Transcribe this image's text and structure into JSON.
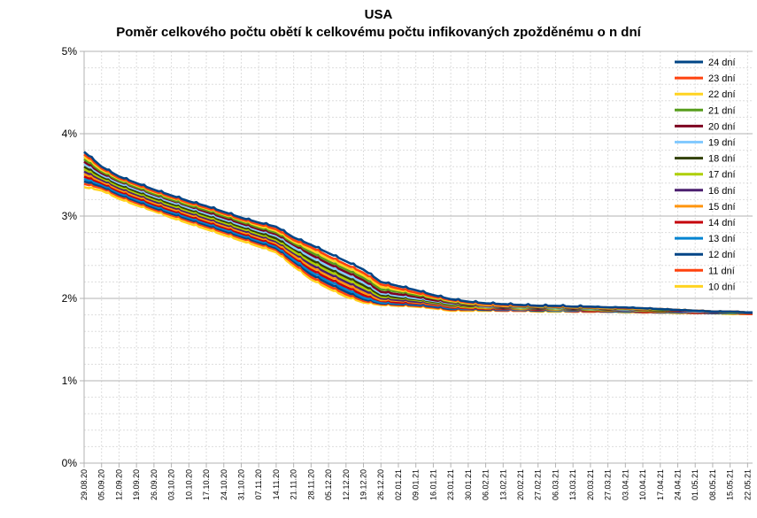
{
  "chart_data": {
    "type": "line",
    "title": "USA",
    "subtitle": "Poměr celkového počtu obětí k celkovému počtu infikovaných zpožděnému o n dní",
    "xlabel": "",
    "ylabel": "",
    "ylim": [
      0,
      5
    ],
    "y_ticks": [
      "0%",
      "1%",
      "2%",
      "3%",
      "4%",
      "5%"
    ],
    "grid": true,
    "legend_position": "top-right",
    "x_tick_labels": [
      "29.08.20",
      "05.09.20",
      "12.09.20",
      "19.09.20",
      "26.09.20",
      "03.10.20",
      "10.10.20",
      "17.10.20",
      "24.10.20",
      "31.10.20",
      "07.11.20",
      "14.11.20",
      "21.11.20",
      "28.11.20",
      "05.12.20",
      "12.12.20",
      "19.12.20",
      "26.12.20",
      "02.01.21",
      "09.01.21",
      "16.01.21",
      "23.01.21",
      "30.01.21",
      "06.02.21",
      "13.02.21",
      "20.02.21",
      "27.02.21",
      "06.03.21",
      "13.03.21",
      "20.03.21",
      "27.03.21",
      "03.04.21",
      "10.04.21",
      "17.04.21",
      "24.04.21",
      "01.05.21",
      "08.05.21",
      "15.05.21",
      "22.05.21"
    ],
    "x_key_points": [
      0,
      7,
      14,
      21,
      28,
      35,
      42,
      49,
      56,
      63,
      70,
      77,
      84,
      91,
      98,
      105,
      112,
      119,
      126,
      133,
      140,
      147,
      154,
      161,
      168,
      175,
      182,
      189,
      196,
      203,
      210,
      217,
      224,
      231,
      238,
      245,
      252,
      259,
      266
    ],
    "series": [
      {
        "name": "24 dní",
        "color": "#004586",
        "values": [
          3.78,
          3.6,
          3.48,
          3.4,
          3.32,
          3.25,
          3.18,
          3.12,
          3.05,
          2.98,
          2.92,
          2.87,
          2.74,
          2.65,
          2.55,
          2.45,
          2.35,
          2.2,
          2.15,
          2.1,
          2.04,
          1.99,
          1.96,
          1.94,
          1.93,
          1.92,
          1.91,
          1.91,
          1.9,
          1.9,
          1.89,
          1.89,
          1.88,
          1.87,
          1.86,
          1.85,
          1.84,
          1.84,
          1.83
        ]
      },
      {
        "name": "23 dní",
        "color": "#ff420e",
        "values": [
          3.75,
          3.58,
          3.46,
          3.38,
          3.3,
          3.23,
          3.16,
          3.1,
          3.03,
          2.96,
          2.9,
          2.84,
          2.71,
          2.62,
          2.51,
          2.41,
          2.31,
          2.17,
          2.12,
          2.07,
          2.02,
          1.98,
          1.95,
          1.93,
          1.92,
          1.91,
          1.91,
          1.9,
          1.9,
          1.89,
          1.89,
          1.88,
          1.88,
          1.87,
          1.86,
          1.85,
          1.84,
          1.84,
          1.83
        ]
      },
      {
        "name": "22 dní",
        "color": "#ffd320",
        "values": [
          3.72,
          3.56,
          3.45,
          3.37,
          3.29,
          3.22,
          3.15,
          3.09,
          3.02,
          2.95,
          2.88,
          2.82,
          2.69,
          2.59,
          2.48,
          2.38,
          2.28,
          2.14,
          2.1,
          2.06,
          2.01,
          1.97,
          1.94,
          1.92,
          1.91,
          1.91,
          1.9,
          1.9,
          1.89,
          1.89,
          1.88,
          1.88,
          1.87,
          1.87,
          1.86,
          1.85,
          1.84,
          1.84,
          1.83
        ]
      },
      {
        "name": "21 dní",
        "color": "#579d1c",
        "values": [
          3.69,
          3.54,
          3.43,
          3.35,
          3.27,
          3.2,
          3.13,
          3.07,
          3.0,
          2.93,
          2.86,
          2.8,
          2.67,
          2.56,
          2.45,
          2.35,
          2.25,
          2.11,
          2.08,
          2.04,
          2.0,
          1.96,
          1.93,
          1.92,
          1.91,
          1.9,
          1.9,
          1.89,
          1.89,
          1.88,
          1.88,
          1.87,
          1.87,
          1.86,
          1.86,
          1.85,
          1.84,
          1.83,
          1.83
        ]
      },
      {
        "name": "20 dní",
        "color": "#7e0021",
        "values": [
          3.66,
          3.52,
          3.42,
          3.34,
          3.26,
          3.19,
          3.12,
          3.05,
          2.98,
          2.91,
          2.84,
          2.78,
          2.65,
          2.53,
          2.42,
          2.32,
          2.22,
          2.08,
          2.05,
          2.02,
          1.98,
          1.95,
          1.92,
          1.91,
          1.9,
          1.9,
          1.89,
          1.89,
          1.88,
          1.88,
          1.87,
          1.87,
          1.86,
          1.86,
          1.85,
          1.85,
          1.84,
          1.83,
          1.83
        ]
      },
      {
        "name": "19 dní",
        "color": "#83caff",
        "values": [
          3.63,
          3.5,
          3.4,
          3.32,
          3.24,
          3.17,
          3.1,
          3.03,
          2.96,
          2.89,
          2.82,
          2.76,
          2.62,
          2.5,
          2.39,
          2.29,
          2.19,
          2.06,
          2.03,
          2.0,
          1.97,
          1.94,
          1.92,
          1.9,
          1.9,
          1.89,
          1.89,
          1.88,
          1.88,
          1.87,
          1.87,
          1.86,
          1.86,
          1.86,
          1.85,
          1.84,
          1.84,
          1.83,
          1.83
        ]
      },
      {
        "name": "18 dní",
        "color": "#314004",
        "values": [
          3.6,
          3.48,
          3.38,
          3.3,
          3.22,
          3.15,
          3.08,
          3.01,
          2.94,
          2.87,
          2.8,
          2.73,
          2.6,
          2.47,
          2.36,
          2.26,
          2.16,
          2.04,
          2.01,
          1.99,
          1.96,
          1.93,
          1.91,
          1.9,
          1.89,
          1.89,
          1.88,
          1.88,
          1.87,
          1.87,
          1.86,
          1.86,
          1.86,
          1.85,
          1.85,
          1.84,
          1.84,
          1.83,
          1.83
        ]
      },
      {
        "name": "17 dní",
        "color": "#aecf00",
        "values": [
          3.57,
          3.46,
          3.36,
          3.28,
          3.2,
          3.13,
          3.06,
          2.99,
          2.92,
          2.85,
          2.78,
          2.71,
          2.57,
          2.44,
          2.33,
          2.23,
          2.13,
          2.02,
          2.0,
          1.98,
          1.95,
          1.92,
          1.9,
          1.89,
          1.89,
          1.88,
          1.88,
          1.87,
          1.87,
          1.86,
          1.86,
          1.86,
          1.85,
          1.85,
          1.85,
          1.84,
          1.84,
          1.83,
          1.83
        ]
      },
      {
        "name": "16 dní",
        "color": "#4b1f6f",
        "values": [
          3.54,
          3.44,
          3.34,
          3.26,
          3.18,
          3.11,
          3.04,
          2.97,
          2.9,
          2.83,
          2.76,
          2.69,
          2.55,
          2.41,
          2.3,
          2.2,
          2.1,
          2.0,
          1.98,
          1.96,
          1.94,
          1.91,
          1.9,
          1.89,
          1.88,
          1.88,
          1.87,
          1.87,
          1.86,
          1.86,
          1.86,
          1.85,
          1.85,
          1.85,
          1.84,
          1.84,
          1.83,
          1.83,
          1.82
        ]
      },
      {
        "name": "15 dní",
        "color": "#ff950e",
        "values": [
          3.51,
          3.42,
          3.32,
          3.24,
          3.16,
          3.09,
          3.02,
          2.95,
          2.88,
          2.81,
          2.74,
          2.67,
          2.52,
          2.38,
          2.27,
          2.17,
          2.07,
          1.98,
          1.97,
          1.95,
          1.93,
          1.9,
          1.89,
          1.88,
          1.88,
          1.87,
          1.87,
          1.86,
          1.86,
          1.86,
          1.85,
          1.85,
          1.85,
          1.84,
          1.84,
          1.84,
          1.83,
          1.83,
          1.82
        ]
      },
      {
        "name": "14 dní",
        "color": "#c5000b",
        "values": [
          3.48,
          3.4,
          3.3,
          3.22,
          3.14,
          3.07,
          3.0,
          2.93,
          2.86,
          2.79,
          2.72,
          2.65,
          2.5,
          2.35,
          2.24,
          2.14,
          2.04,
          1.97,
          1.95,
          1.94,
          1.92,
          1.89,
          1.88,
          1.87,
          1.87,
          1.87,
          1.86,
          1.86,
          1.86,
          1.85,
          1.85,
          1.85,
          1.84,
          1.84,
          1.84,
          1.83,
          1.83,
          1.83,
          1.82
        ]
      },
      {
        "name": "13 dní",
        "color": "#0084d1",
        "values": [
          3.45,
          3.38,
          3.28,
          3.2,
          3.12,
          3.05,
          2.98,
          2.91,
          2.84,
          2.77,
          2.7,
          2.63,
          2.47,
          2.32,
          2.21,
          2.11,
          2.01,
          1.95,
          1.94,
          1.93,
          1.91,
          1.88,
          1.87,
          1.87,
          1.86,
          1.86,
          1.86,
          1.85,
          1.85,
          1.85,
          1.85,
          1.84,
          1.84,
          1.84,
          1.83,
          1.83,
          1.83,
          1.82,
          1.82
        ]
      },
      {
        "name": "12 dní",
        "color": "#004586",
        "values": [
          3.42,
          3.36,
          3.26,
          3.18,
          3.1,
          3.03,
          2.96,
          2.89,
          2.82,
          2.75,
          2.68,
          2.61,
          2.45,
          2.29,
          2.18,
          2.08,
          1.99,
          1.94,
          1.93,
          1.92,
          1.9,
          1.87,
          1.87,
          1.86,
          1.86,
          1.86,
          1.85,
          1.85,
          1.85,
          1.85,
          1.84,
          1.84,
          1.84,
          1.83,
          1.83,
          1.83,
          1.82,
          1.82,
          1.82
        ]
      },
      {
        "name": "11 dní",
        "color": "#ff420e",
        "values": [
          3.39,
          3.34,
          3.24,
          3.16,
          3.08,
          3.01,
          2.94,
          2.87,
          2.8,
          2.73,
          2.66,
          2.59,
          2.42,
          2.26,
          2.15,
          2.05,
          1.97,
          1.93,
          1.92,
          1.91,
          1.89,
          1.86,
          1.86,
          1.86,
          1.85,
          1.85,
          1.85,
          1.85,
          1.84,
          1.84,
          1.84,
          1.84,
          1.83,
          1.83,
          1.83,
          1.82,
          1.82,
          1.82,
          1.81
        ]
      },
      {
        "name": "10 dní",
        "color": "#ffd320",
        "values": [
          3.35,
          3.31,
          3.21,
          3.13,
          3.06,
          2.98,
          2.91,
          2.84,
          2.77,
          2.7,
          2.63,
          2.56,
          2.39,
          2.23,
          2.12,
          2.02,
          1.95,
          1.92,
          1.91,
          1.9,
          1.88,
          1.85,
          1.85,
          1.85,
          1.85,
          1.85,
          1.84,
          1.84,
          1.84,
          1.84,
          1.84,
          1.83,
          1.83,
          1.83,
          1.82,
          1.82,
          1.82,
          1.81,
          1.81
        ]
      }
    ],
    "x_max": 268
  }
}
